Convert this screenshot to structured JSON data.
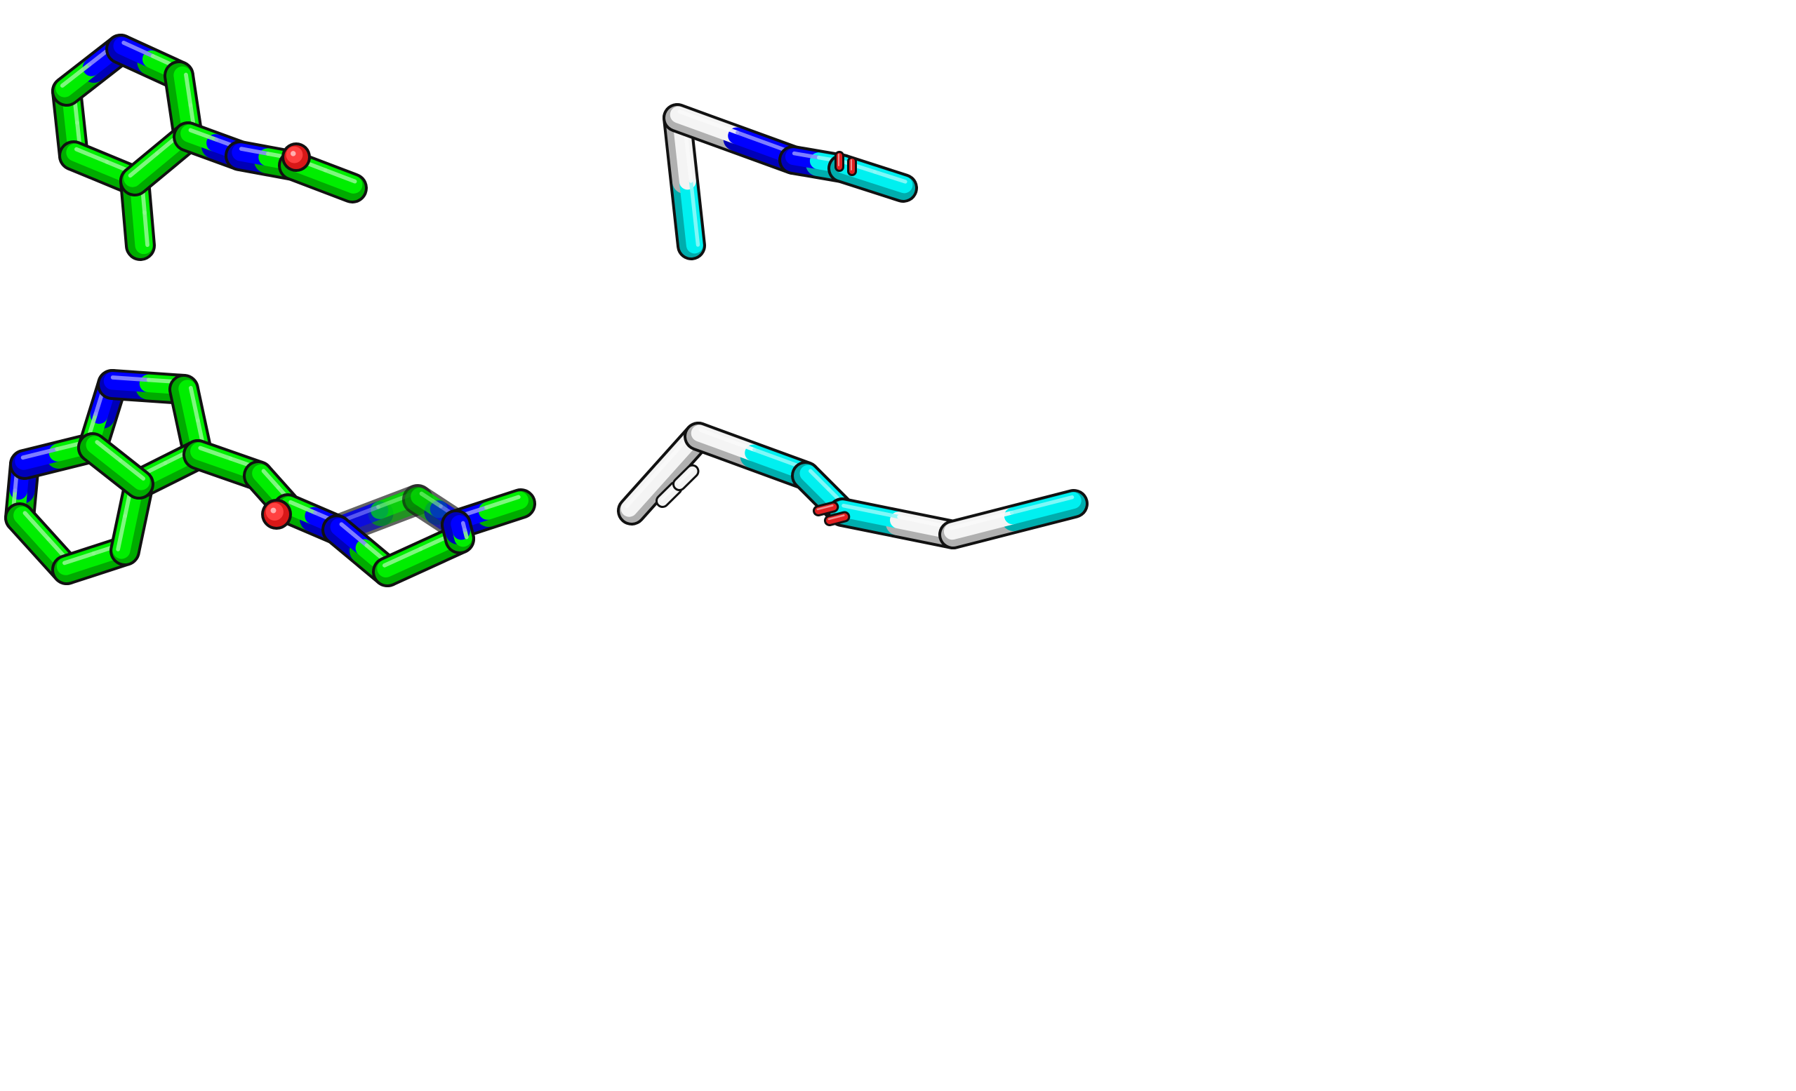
{
  "figure": {
    "background": "#ffffff",
    "panels": [
      {
        "id": "top-left",
        "render_style": "stick",
        "carbon_color": "#00ee00",
        "atoms": [
          {
            "id": "a1",
            "el": "C"
          },
          {
            "id": "a2",
            "el": "N"
          },
          {
            "id": "a3",
            "el": "C"
          },
          {
            "id": "a4",
            "el": "C"
          },
          {
            "id": "a5",
            "el": "C"
          },
          {
            "id": "a6",
            "el": "C"
          },
          {
            "id": "a7",
            "el": "C"
          },
          {
            "id": "a8",
            "el": "N"
          },
          {
            "id": "a9",
            "el": "C"
          },
          {
            "id": "a10",
            "el": "C"
          },
          {
            "id": "o1",
            "el": "O"
          }
        ],
        "bonds": [
          [
            "a1",
            "a2"
          ],
          [
            "a2",
            "a3"
          ],
          [
            "a3",
            "a4"
          ],
          [
            "a4",
            "a5"
          ],
          [
            "a5",
            "a6"
          ],
          [
            "a6",
            "a1"
          ],
          [
            "a5",
            "a7"
          ],
          [
            "a4",
            "a8"
          ],
          [
            "a8",
            "a9"
          ],
          [
            "a9",
            "a10"
          ],
          [
            "a9",
            "o1"
          ]
        ]
      },
      {
        "id": "top-right",
        "render_style": "stick",
        "carbon_color": "#00f0f0",
        "highlight_color": "#f4f4f4",
        "atoms": [
          {
            "id": "b1",
            "el": "C"
          },
          {
            "id": "b2",
            "el": "C"
          },
          {
            "id": "b3",
            "el": "N"
          },
          {
            "id": "b4",
            "el": "C"
          },
          {
            "id": "b5",
            "el": "C"
          },
          {
            "id": "o2",
            "el": "O"
          },
          {
            "id": "o3",
            "el": "O"
          }
        ],
        "bonds": [
          [
            "b1",
            "b2"
          ],
          [
            "b2",
            "b3"
          ],
          [
            "b3",
            "b4"
          ],
          [
            "b4",
            "b5"
          ],
          [
            "b4",
            "o2"
          ],
          [
            "b4",
            "o3"
          ]
        ]
      },
      {
        "id": "bottom-left",
        "render_style": "stick",
        "carbon_color": "#00ee00",
        "atoms": [
          {
            "id": "c1",
            "el": "C"
          },
          {
            "id": "c2",
            "el": "N"
          },
          {
            "id": "c3",
            "el": "C"
          },
          {
            "id": "c4",
            "el": "C"
          },
          {
            "id": "c5",
            "el": "C"
          },
          {
            "id": "c6",
            "el": "N"
          },
          {
            "id": "c7",
            "el": "C"
          },
          {
            "id": "c8",
            "el": "N"
          },
          {
            "id": "c9",
            "el": "C"
          },
          {
            "id": "c10",
            "el": "C"
          },
          {
            "id": "c11",
            "el": "N"
          },
          {
            "id": "c12",
            "el": "C"
          },
          {
            "id": "c13",
            "el": "C"
          },
          {
            "id": "c14",
            "el": "C"
          },
          {
            "id": "c15",
            "el": "N"
          },
          {
            "id": "c16",
            "el": "C"
          },
          {
            "id": "o4",
            "el": "O"
          }
        ],
        "bonds": [
          [
            "c1",
            "c2"
          ],
          [
            "c2",
            "c3"
          ],
          [
            "c3",
            "c4"
          ],
          [
            "c4",
            "c5"
          ],
          [
            "c5",
            "c6"
          ],
          [
            "c6",
            "c1"
          ],
          [
            "c5",
            "c7"
          ],
          [
            "c7",
            "c8"
          ],
          [
            "c8",
            "c9"
          ],
          [
            "c9",
            "c4"
          ],
          [
            "c9",
            "c10"
          ],
          [
            "c10",
            "c11"
          ],
          [
            "c11",
            "c12"
          ],
          [
            "c12",
            "c13"
          ],
          [
            "c13",
            "c14"
          ],
          [
            "c14",
            "c15"
          ],
          [
            "c15",
            "c16"
          ],
          [
            "c15",
            "c11"
          ],
          [
            "c11",
            "o4"
          ]
        ]
      },
      {
        "id": "bottom-right",
        "render_style": "stick",
        "carbon_color": "#00f0f0",
        "highlight_color": "#f4f4f4",
        "atoms": [
          {
            "id": "d1",
            "el": "C"
          },
          {
            "id": "d2",
            "el": "C"
          },
          {
            "id": "d3",
            "el": "C"
          },
          {
            "id": "d4",
            "el": "C"
          },
          {
            "id": "d5",
            "el": "C"
          },
          {
            "id": "d6",
            "el": "C"
          },
          {
            "id": "d7",
            "el": "C"
          },
          {
            "id": "o5",
            "el": "O"
          },
          {
            "id": "o6",
            "el": "O"
          }
        ],
        "bonds": [
          [
            "d1",
            "d2"
          ],
          [
            "d2",
            "d3"
          ],
          [
            "d3",
            "d4"
          ],
          [
            "d4",
            "d5"
          ],
          [
            "d5",
            "d6"
          ],
          [
            "d6",
            "d7"
          ],
          [
            "d4",
            "o5"
          ],
          [
            "d4",
            "o6"
          ]
        ]
      }
    ],
    "element_colors": {
      "N": "#0000ff",
      "O": "#ff2020",
      "H": "#ffffff"
    }
  }
}
